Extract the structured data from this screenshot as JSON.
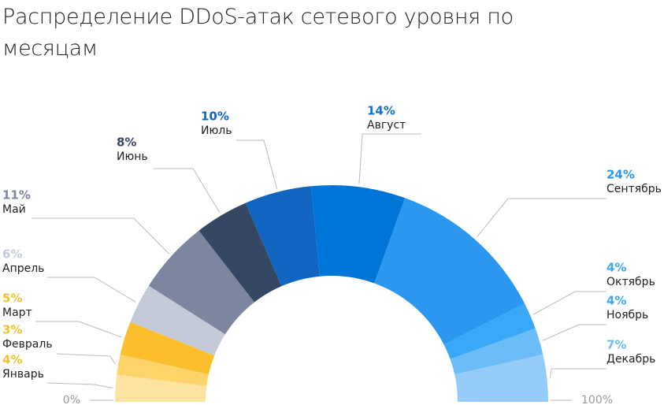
{
  "chart_data": {
    "type": "half-donut",
    "title": "Распределение DDoS-атак сетевого уровня по месяцам",
    "categories": [
      "Январь",
      "Февраль",
      "Март",
      "Апрель",
      "Май",
      "Июнь",
      "Июль",
      "Август",
      "Сентябрь",
      "Октябрь",
      "Ноябрь",
      "Декабрь"
    ],
    "values": [
      4,
      3,
      5,
      6,
      11,
      8,
      10,
      14,
      24,
      4,
      4,
      7
    ],
    "value_labels": [
      "4%",
      "3%",
      "5%",
      "6%",
      "11%",
      "8%",
      "10%",
      "14%",
      "24%",
      "4%",
      "4%",
      "7%"
    ],
    "colors": [
      "#fde3a0",
      "#fdd46a",
      "#fbbf2e",
      "#c5cad8",
      "#7c879f",
      "#344863",
      "#1165c0",
      "#0075d8",
      "#2b97ee",
      "#3aa8f7",
      "#6cbcf7",
      "#94cbf9"
    ],
    "label_colors": [
      "#f4c02c",
      "#f4c02c",
      "#f4c02c",
      "#c5cad8",
      "#7c879f",
      "#344863",
      "#1165c0",
      "#0b73cf",
      "#2b97ee",
      "#3aa8f7",
      "#3aa8f7",
      "#6cbcf7"
    ],
    "xlim": [
      0,
      100
    ],
    "xticks": [
      {
        "value": 0,
        "label": "0%"
      },
      {
        "value": 100,
        "label": "100%"
      }
    ]
  }
}
